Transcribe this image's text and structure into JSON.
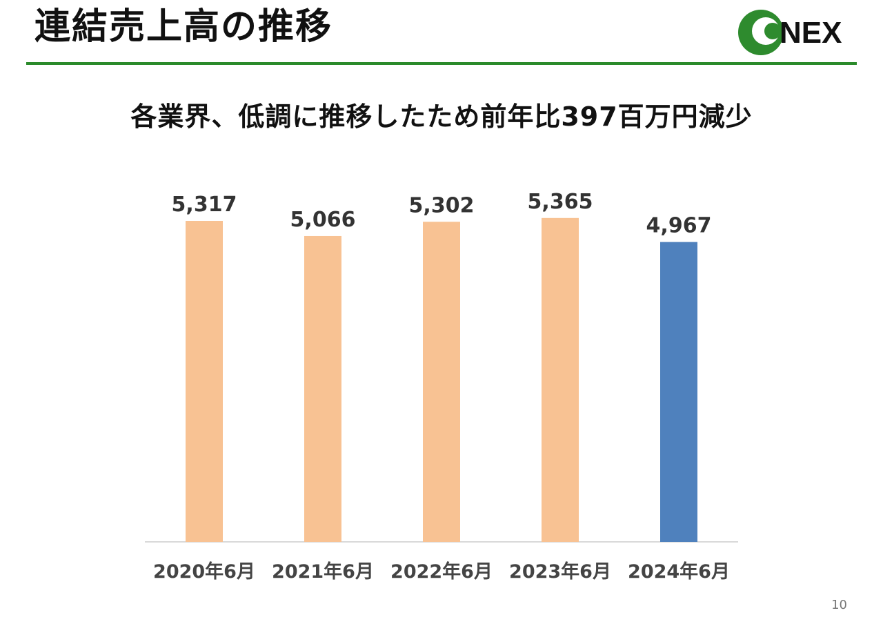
{
  "header": {
    "title": "連結売上高の推移",
    "logo_text": "NEX"
  },
  "headline": "各業界、低調に推移したため前年比397百万円減少",
  "page_number": "10",
  "colors": {
    "accent": "#2a8a2a",
    "bar_previous": "#f8c293",
    "bar_current": "#4f81bd",
    "logo_green": "#2e8b2e"
  },
  "chart_data": {
    "type": "bar",
    "categories": [
      "2020年6月",
      "2021年6月",
      "2022年6月",
      "2023年6月",
      "2024年6月"
    ],
    "values": [
      5317,
      5066,
      5302,
      5365,
      4967
    ],
    "value_labels": [
      "5,317",
      "5,066",
      "5,302",
      "5,365",
      "4,967"
    ],
    "highlight_index": 4,
    "ylim": [
      0,
      6000
    ],
    "title": "",
    "xlabel": "",
    "ylabel": "",
    "grid": false,
    "legend": "none"
  }
}
